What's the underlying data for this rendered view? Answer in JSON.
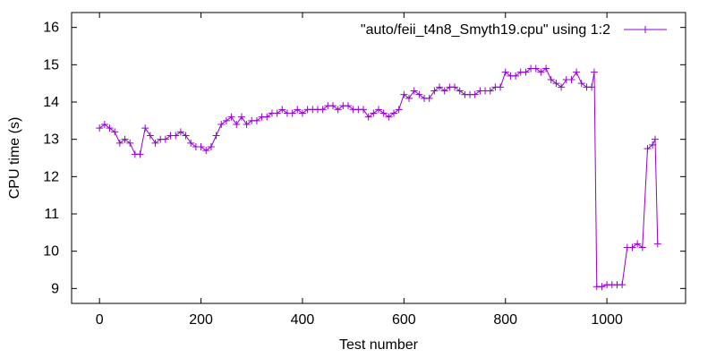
{
  "chart_data": {
    "type": "line",
    "title": "",
    "xlabel": "Test number",
    "ylabel": "CPU time (s)",
    "xlim": [
      -55,
      1155
    ],
    "ylim": [
      8.6,
      16.4
    ],
    "xticks": [
      0,
      200,
      400,
      600,
      800,
      1000
    ],
    "yticks": [
      9,
      10,
      11,
      12,
      13,
      14,
      15,
      16
    ],
    "grid": false,
    "legend": {
      "position": "top-right"
    },
    "series": [
      {
        "name": "\"auto/feii_t4n8_Smyth19.cpu\" using 1:2",
        "color": "#9400d3",
        "marker": "plus",
        "points": [
          [
            0,
            13.3
          ],
          [
            10,
            13.4
          ],
          [
            20,
            13.3
          ],
          [
            30,
            13.2
          ],
          [
            40,
            12.9
          ],
          [
            50,
            13.0
          ],
          [
            60,
            12.9
          ],
          [
            70,
            12.6
          ],
          [
            80,
            12.6
          ],
          [
            90,
            13.3
          ],
          [
            100,
            13.1
          ],
          [
            110,
            12.9
          ],
          [
            120,
            13.0
          ],
          [
            130,
            13.0
          ],
          [
            140,
            13.1
          ],
          [
            150,
            13.1
          ],
          [
            160,
            13.2
          ],
          [
            170,
            13.1
          ],
          [
            180,
            12.9
          ],
          [
            190,
            12.8
          ],
          [
            200,
            12.8
          ],
          [
            210,
            12.7
          ],
          [
            220,
            12.8
          ],
          [
            230,
            13.1
          ],
          [
            240,
            13.4
          ],
          [
            250,
            13.5
          ],
          [
            260,
            13.6
          ],
          [
            270,
            13.4
          ],
          [
            280,
            13.6
          ],
          [
            290,
            13.4
          ],
          [
            300,
            13.5
          ],
          [
            310,
            13.5
          ],
          [
            320,
            13.6
          ],
          [
            330,
            13.6
          ],
          [
            340,
            13.7
          ],
          [
            350,
            13.7
          ],
          [
            360,
            13.8
          ],
          [
            370,
            13.7
          ],
          [
            380,
            13.7
          ],
          [
            390,
            13.8
          ],
          [
            400,
            13.7
          ],
          [
            410,
            13.8
          ],
          [
            420,
            13.8
          ],
          [
            430,
            13.8
          ],
          [
            440,
            13.8
          ],
          [
            450,
            13.9
          ],
          [
            460,
            13.9
          ],
          [
            470,
            13.8
          ],
          [
            480,
            13.9
          ],
          [
            490,
            13.9
          ],
          [
            500,
            13.8
          ],
          [
            510,
            13.8
          ],
          [
            520,
            13.8
          ],
          [
            530,
            13.6
          ],
          [
            540,
            13.7
          ],
          [
            550,
            13.8
          ],
          [
            560,
            13.7
          ],
          [
            570,
            13.6
          ],
          [
            580,
            13.7
          ],
          [
            590,
            13.8
          ],
          [
            600,
            14.2
          ],
          [
            610,
            14.1
          ],
          [
            620,
            14.3
          ],
          [
            630,
            14.2
          ],
          [
            640,
            14.1
          ],
          [
            650,
            14.1
          ],
          [
            660,
            14.3
          ],
          [
            670,
            14.4
          ],
          [
            680,
            14.3
          ],
          [
            690,
            14.4
          ],
          [
            700,
            14.4
          ],
          [
            710,
            14.3
          ],
          [
            720,
            14.2
          ],
          [
            730,
            14.2
          ],
          [
            740,
            14.2
          ],
          [
            750,
            14.3
          ],
          [
            760,
            14.3
          ],
          [
            770,
            14.3
          ],
          [
            780,
            14.4
          ],
          [
            790,
            14.4
          ],
          [
            800,
            14.8
          ],
          [
            810,
            14.7
          ],
          [
            820,
            14.7
          ],
          [
            830,
            14.8
          ],
          [
            840,
            14.8
          ],
          [
            850,
            14.9
          ],
          [
            860,
            14.9
          ],
          [
            870,
            14.8
          ],
          [
            880,
            14.9
          ],
          [
            890,
            14.6
          ],
          [
            900,
            14.5
          ],
          [
            910,
            14.4
          ],
          [
            920,
            14.6
          ],
          [
            930,
            14.6
          ],
          [
            940,
            14.8
          ],
          [
            950,
            14.5
          ],
          [
            960,
            14.4
          ],
          [
            970,
            14.4
          ],
          [
            975,
            14.8
          ],
          [
            980,
            9.05
          ],
          [
            990,
            9.05
          ],
          [
            1000,
            9.1
          ],
          [
            1010,
            9.1
          ],
          [
            1020,
            9.1
          ],
          [
            1030,
            9.1
          ],
          [
            1040,
            10.1
          ],
          [
            1050,
            10.1
          ],
          [
            1060,
            10.2
          ],
          [
            1070,
            10.1
          ],
          [
            1080,
            12.75
          ],
          [
            1090,
            12.85
          ],
          [
            1095,
            13.0
          ],
          [
            1100,
            10.2
          ]
        ]
      }
    ]
  }
}
